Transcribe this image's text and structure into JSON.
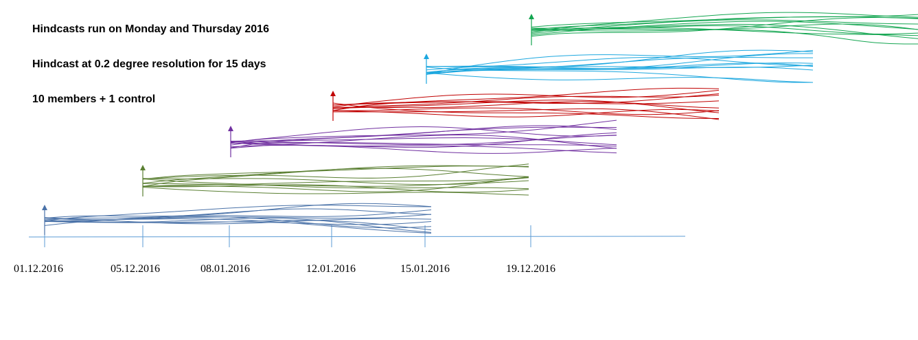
{
  "notes": [
    "Hindcasts run on Monday  and Thursday  2016",
    "Hindcast at 0.2 degree resolution  for 15 days",
    "10 members + 1 control"
  ],
  "timeline": {
    "color": "#5b9bd5",
    "dates": [
      "01.12.2016",
      "05.12.2016",
      "08.01.2016",
      "12.01.2016",
      "15.01.2016",
      "19.12.2016"
    ]
  },
  "forecast_runs": [
    {
      "start_date": "01.12.2016",
      "color": "#4a72a8"
    },
    {
      "start_date": "05.12.2016",
      "color": "#5a7f32"
    },
    {
      "start_date": "08.01.2016",
      "color": "#7030a0"
    },
    {
      "start_date": "12.01.2016",
      "color": "#c00000"
    },
    {
      "start_date": "15.01.2016",
      "color": "#1ca7df"
    },
    {
      "start_date": "19.12.2016",
      "color": "#13a550"
    }
  ]
}
